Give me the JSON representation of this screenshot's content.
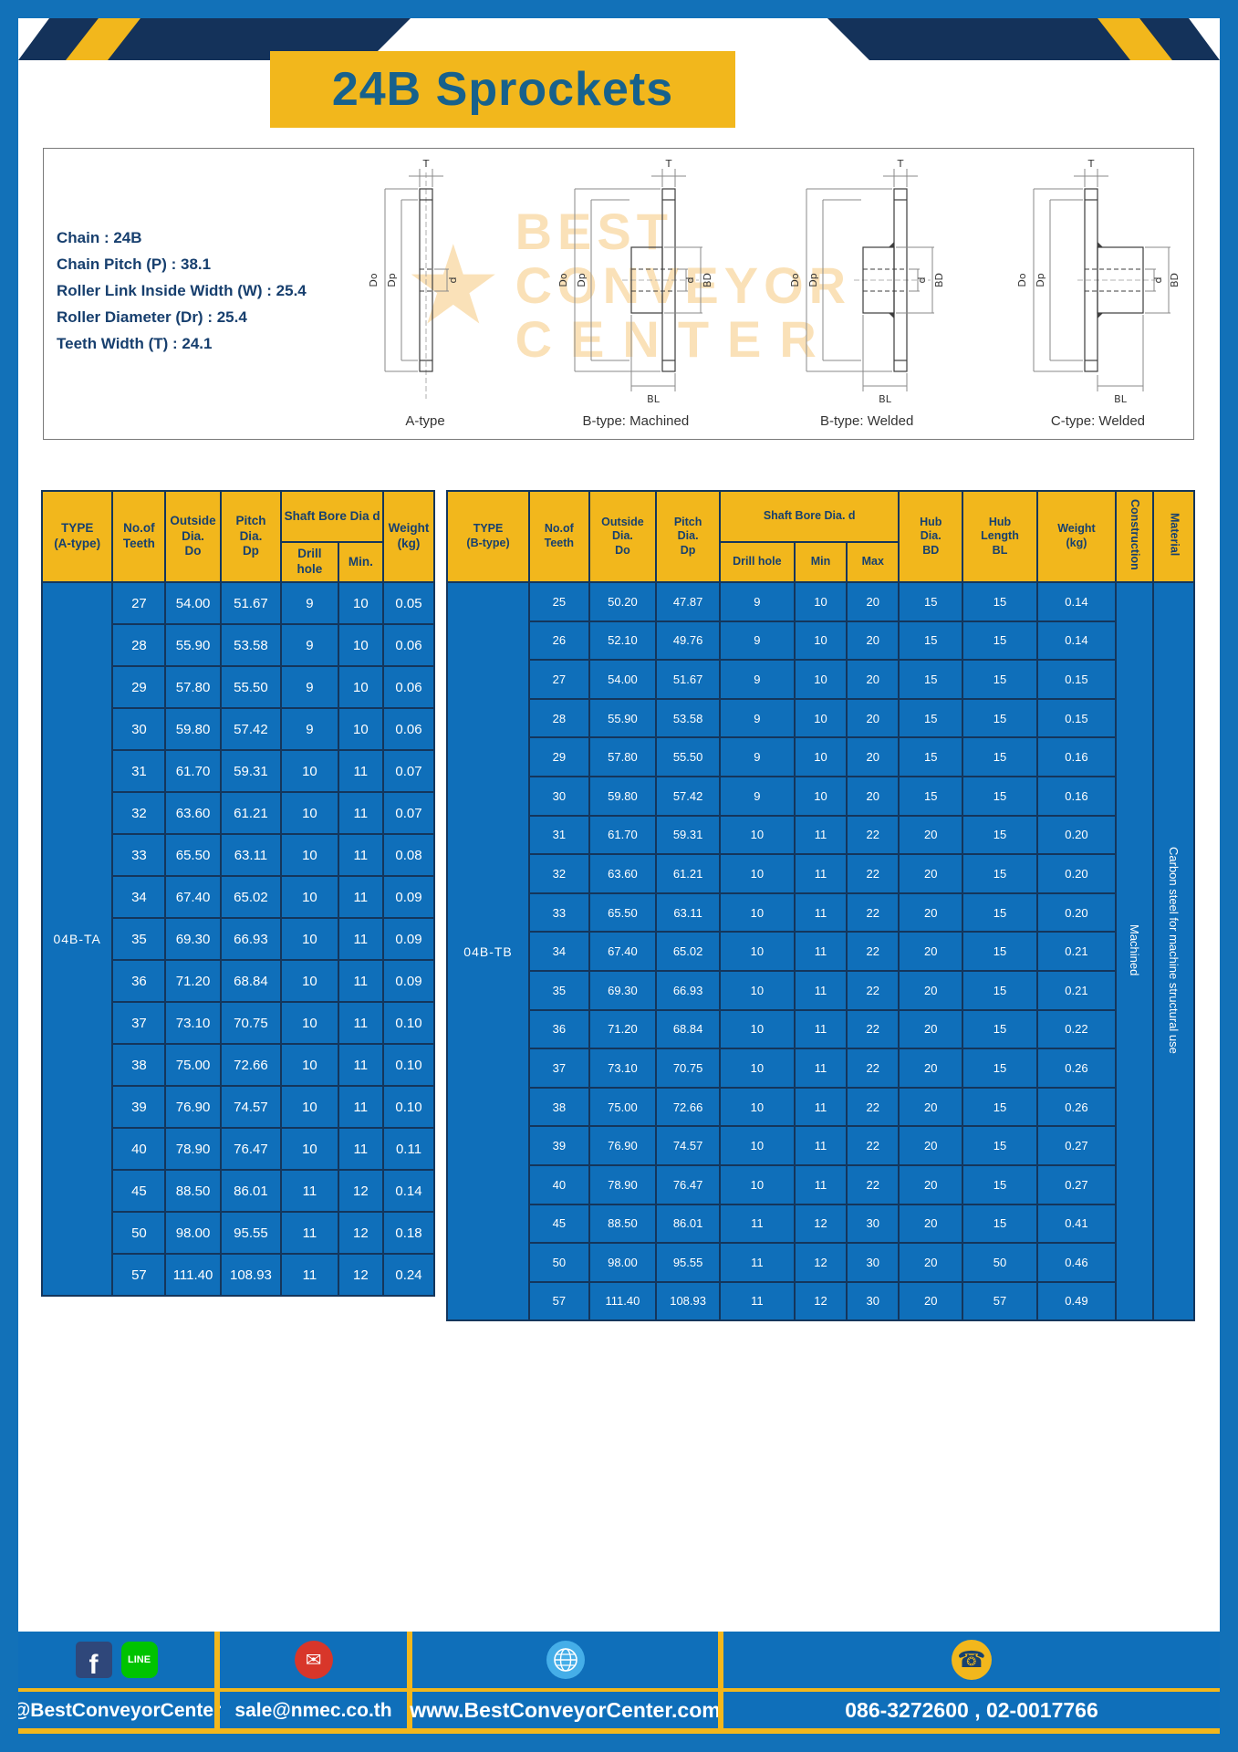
{
  "page": {
    "title": "24B Sprockets"
  },
  "colors": {
    "accent_yellow": "#f2b71c",
    "primary_blue": "#0f6fba",
    "navy": "#14365c",
    "title_blue": "#17618c"
  },
  "specs": {
    "lines": [
      "Chain : 24B",
      "Chain Pitch (P) : 38.1",
      "Roller Link Inside Width (W) : 25.4",
      "Roller Diameter (Dr) : 25.4",
      "Teeth Width (T) : 24.1"
    ]
  },
  "drawings": {
    "captions": [
      "A-type",
      "B-type: Machined",
      "B-type: Welded",
      "C-type: Welded"
    ],
    "dims": {
      "t": "T",
      "do": "Do",
      "dp": "Dp",
      "d": "d",
      "bd": "BD",
      "bl": "BL"
    },
    "watermark": {
      "star": "★",
      "line1": "BEST",
      "line2": "CONVEYOR",
      "line3": "CENTER"
    }
  },
  "table_a": {
    "headers": {
      "type": "TYPE\n(A-type)",
      "teeth": "No.of\nTeeth",
      "outside": "Outside\nDia.\nDo",
      "pitch": "Pitch Dia.\nDp",
      "shaft": "Shaft Bore Dia d",
      "drill": "Drill hole",
      "min": "Min.",
      "weight": "Weight\n(kg)"
    },
    "type_value": "04B-TA",
    "rows": [
      [
        "27",
        "54.00",
        "51.67",
        "9",
        "10",
        "0.05"
      ],
      [
        "28",
        "55.90",
        "53.58",
        "9",
        "10",
        "0.06"
      ],
      [
        "29",
        "57.80",
        "55.50",
        "9",
        "10",
        "0.06"
      ],
      [
        "30",
        "59.80",
        "57.42",
        "9",
        "10",
        "0.06"
      ],
      [
        "31",
        "61.70",
        "59.31",
        "10",
        "11",
        "0.07"
      ],
      [
        "32",
        "63.60",
        "61.21",
        "10",
        "11",
        "0.07"
      ],
      [
        "33",
        "65.50",
        "63.11",
        "10",
        "11",
        "0.08"
      ],
      [
        "34",
        "67.40",
        "65.02",
        "10",
        "11",
        "0.09"
      ],
      [
        "35",
        "69.30",
        "66.93",
        "10",
        "11",
        "0.09"
      ],
      [
        "36",
        "71.20",
        "68.84",
        "10",
        "11",
        "0.09"
      ],
      [
        "37",
        "73.10",
        "70.75",
        "10",
        "11",
        "0.10"
      ],
      [
        "38",
        "75.00",
        "72.66",
        "10",
        "11",
        "0.10"
      ],
      [
        "39",
        "76.90",
        "74.57",
        "10",
        "11",
        "0.10"
      ],
      [
        "40",
        "78.90",
        "76.47",
        "10",
        "11",
        "0.11"
      ],
      [
        "45",
        "88.50",
        "86.01",
        "11",
        "12",
        "0.14"
      ],
      [
        "50",
        "98.00",
        "95.55",
        "11",
        "12",
        "0.18"
      ],
      [
        "57",
        "111.40",
        "108.93",
        "11",
        "12",
        "0.24"
      ]
    ]
  },
  "table_b": {
    "headers": {
      "type": "TYPE\n(B-type)",
      "teeth": "No.of\nTeeth",
      "outside": "Outside\nDia.\nDo",
      "pitch": "Pitch\nDia.\nDp",
      "shaft": "Shaft Bore Dia. d",
      "drill": "Drill hole",
      "min": "Min",
      "max": "Max",
      "hub_dia": "Hub\nDia.\nBD",
      "hub_len": "Hub\nLength\nBL",
      "weight": "Weight\n(kg)",
      "construction": "Construction",
      "material": "Material"
    },
    "type_value": "04B-TB",
    "construction": "Machined",
    "material": "Carbon steel for machine structural use",
    "rows": [
      [
        "25",
        "50.20",
        "47.87",
        "9",
        "10",
        "20",
        "15",
        "15",
        "0.14"
      ],
      [
        "26",
        "52.10",
        "49.76",
        "9",
        "10",
        "20",
        "15",
        "15",
        "0.14"
      ],
      [
        "27",
        "54.00",
        "51.67",
        "9",
        "10",
        "20",
        "15",
        "15",
        "0.15"
      ],
      [
        "28",
        "55.90",
        "53.58",
        "9",
        "10",
        "20",
        "15",
        "15",
        "0.15"
      ],
      [
        "29",
        "57.80",
        "55.50",
        "9",
        "10",
        "20",
        "15",
        "15",
        "0.16"
      ],
      [
        "30",
        "59.80",
        "57.42",
        "9",
        "10",
        "20",
        "15",
        "15",
        "0.16"
      ],
      [
        "31",
        "61.70",
        "59.31",
        "10",
        "11",
        "22",
        "20",
        "15",
        "0.20"
      ],
      [
        "32",
        "63.60",
        "61.21",
        "10",
        "11",
        "22",
        "20",
        "15",
        "0.20"
      ],
      [
        "33",
        "65.50",
        "63.11",
        "10",
        "11",
        "22",
        "20",
        "15",
        "0.20"
      ],
      [
        "34",
        "67.40",
        "65.02",
        "10",
        "11",
        "22",
        "20",
        "15",
        "0.21"
      ],
      [
        "35",
        "69.30",
        "66.93",
        "10",
        "11",
        "22",
        "20",
        "15",
        "0.21"
      ],
      [
        "36",
        "71.20",
        "68.84",
        "10",
        "11",
        "22",
        "20",
        "15",
        "0.22"
      ],
      [
        "37",
        "73.10",
        "70.75",
        "10",
        "11",
        "22",
        "20",
        "15",
        "0.26"
      ],
      [
        "38",
        "75.00",
        "72.66",
        "10",
        "11",
        "22",
        "20",
        "15",
        "0.26"
      ],
      [
        "39",
        "76.90",
        "74.57",
        "10",
        "11",
        "22",
        "20",
        "15",
        "0.27"
      ],
      [
        "40",
        "78.90",
        "76.47",
        "10",
        "11",
        "22",
        "20",
        "15",
        "0.27"
      ],
      [
        "45",
        "88.50",
        "86.01",
        "11",
        "12",
        "30",
        "20",
        "15",
        "0.41"
      ],
      [
        "50",
        "98.00",
        "95.55",
        "11",
        "12",
        "30",
        "20",
        "50",
        "0.46"
      ],
      [
        "57",
        "111.40",
        "108.93",
        "11",
        "12",
        "30",
        "20",
        "57",
        "0.49"
      ]
    ]
  },
  "footer": {
    "icons": {
      "facebook_glyph": "f",
      "line_glyph": "LINE",
      "mail_glyph": "✉",
      "phone_glyph": "☎"
    },
    "social_handle": "@BestConveyorCenter",
    "email": "sale@nmec.co.th",
    "website": "www.BestConveyorCenter.com",
    "phones": "086-3272600 , 02-0017766"
  }
}
